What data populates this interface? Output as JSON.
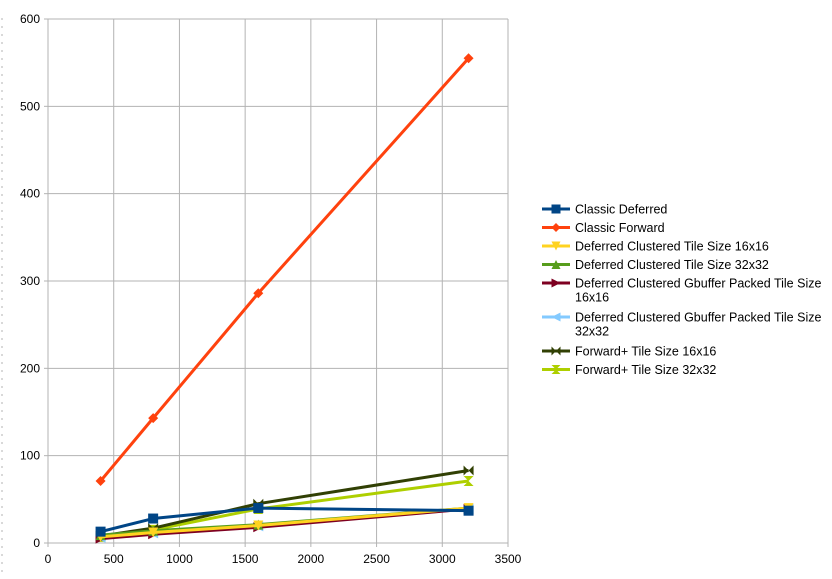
{
  "chart_data": {
    "type": "line",
    "title": "",
    "xlabel": "",
    "ylabel": "",
    "xlim": [
      0,
      3500
    ],
    "ylim": [
      0,
      600
    ],
    "x_ticks": [
      0,
      500,
      1000,
      1500,
      2000,
      2500,
      3000,
      3500
    ],
    "y_ticks": [
      0,
      100,
      200,
      300,
      400,
      500,
      600
    ],
    "grid": "horizontal and vertical major gridlines",
    "legend_position": "right",
    "series": [
      {
        "name": "Classic Deferred",
        "color": "#004586",
        "marker": "square",
        "x": [
          400,
          800,
          1600,
          3200
        ],
        "y": [
          13,
          28,
          40,
          37
        ]
      },
      {
        "name": "Classic Forward",
        "color": "#ff420e",
        "marker": "diamond",
        "x": [
          400,
          800,
          1600,
          3200
        ],
        "y": [
          71,
          143,
          286,
          555
        ]
      },
      {
        "name": "Deferred Clustered Tile Size 16x16",
        "color": "#ffd320",
        "marker": "triangle-down",
        "x": [
          400,
          800,
          1600,
          3200
        ],
        "y": [
          7,
          12,
          20,
          40
        ]
      },
      {
        "name": "Deferred Clustered Tile Size 32x32",
        "color": "#579d1c",
        "marker": "triangle-up",
        "x": [
          400,
          800,
          1600,
          3200
        ],
        "y": [
          9,
          14,
          21,
          40
        ]
      },
      {
        "name": "Deferred Clustered Gbuffer Packed Tile Size 16x16",
        "color": "#7e0021",
        "marker": "triangle-right",
        "x": [
          400,
          800,
          1600,
          3200
        ],
        "y": [
          5,
          10,
          18,
          39
        ]
      },
      {
        "name": "Deferred Clustered Gbuffer Packed Tile Size 32x32",
        "color": "#83caff",
        "marker": "triangle-left",
        "x": [
          400,
          800,
          1600,
          3200
        ],
        "y": [
          6,
          11,
          19,
          39
        ]
      },
      {
        "name": "Forward+  Tile Size 16x16",
        "color": "#314004",
        "marker": "bowtie",
        "x": [
          400,
          800,
          1600,
          3200
        ],
        "y": [
          8,
          17,
          45,
          83
        ]
      },
      {
        "name": "Forward+  Tile Size 32x32",
        "color": "#aecf00",
        "marker": "hourglass",
        "x": [
          400,
          800,
          1600,
          3200
        ],
        "y": [
          7,
          15,
          39,
          71
        ]
      }
    ],
    "legend_lines": [
      [
        "Classic Deferred"
      ],
      [
        "Classic Forward"
      ],
      [
        "Deferred Clustered Tile Size 16x16"
      ],
      [
        "Deferred Clustered Tile Size 32x32"
      ],
      [
        "Deferred Clustered Gbuffer Packed Tile Size",
        "16x16"
      ],
      [
        "Deferred Clustered Gbuffer Packed Tile Size",
        "32x32"
      ],
      [
        "Forward+  Tile Size 16x16"
      ],
      [
        "Forward+  Tile Size 32x32"
      ]
    ]
  }
}
